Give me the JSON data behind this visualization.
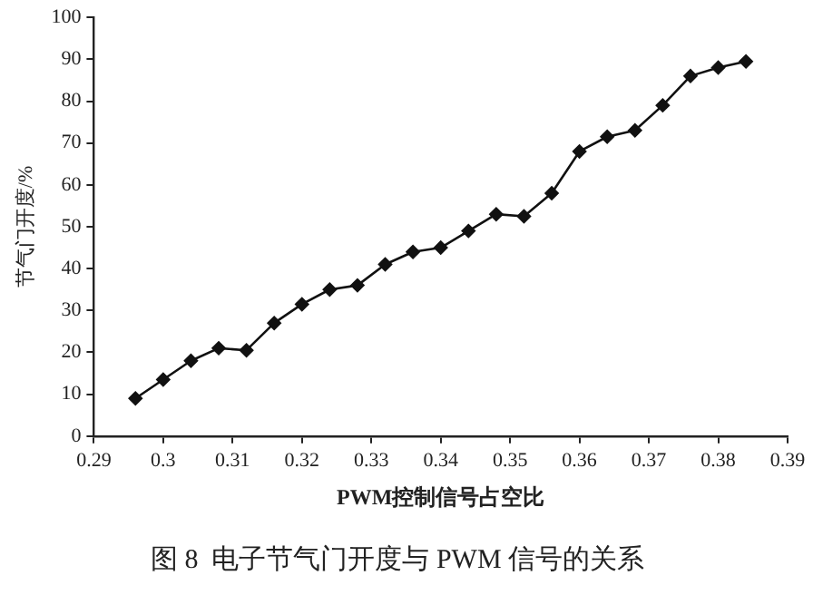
{
  "chart_data": {
    "type": "line",
    "title": "图 8  电子节气门开度与 PWM 信号的关系",
    "xlabel": "PWM控制信号占空比",
    "ylabel": "节气门开度/%",
    "x": [
      0.296,
      0.3,
      0.304,
      0.308,
      0.312,
      0.316,
      0.32,
      0.324,
      0.328,
      0.332,
      0.336,
      0.34,
      0.344,
      0.348,
      0.352,
      0.356,
      0.36,
      0.364,
      0.368,
      0.372,
      0.376,
      0.38,
      0.384
    ],
    "series": [
      {
        "color": "#111111",
        "values": [
          9,
          13.5,
          18,
          21,
          20.5,
          27,
          31.5,
          35,
          36,
          41,
          44,
          45,
          49,
          53,
          52.5,
          58,
          68,
          71.5,
          73,
          79,
          86,
          88,
          89.5
        ]
      }
    ],
    "xlim": [
      0.29,
      0.39
    ],
    "xticks": [
      0.29,
      0.3,
      0.31,
      0.32,
      0.33,
      0.34,
      0.35,
      0.36,
      0.37,
      0.38,
      0.39
    ],
    "ylim": [
      0,
      100
    ],
    "yticks": [
      0,
      10,
      20,
      30,
      40,
      50,
      60,
      70,
      80,
      90,
      100
    ],
    "grid": false,
    "legend": false,
    "marker": "diamond",
    "line_style": "solid"
  }
}
